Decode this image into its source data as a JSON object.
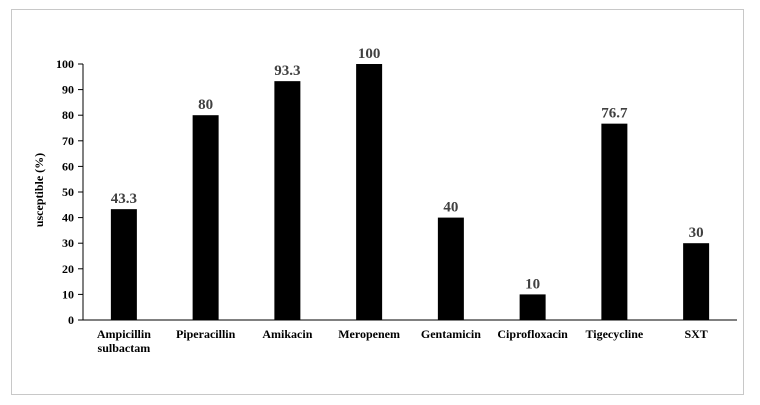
{
  "chart_data": {
    "type": "bar",
    "categories": [
      [
        "Ampicillin",
        "sulbactam"
      ],
      [
        "Piperacillin",
        ""
      ],
      [
        "Amikacin"
      ],
      [
        "Meropenem"
      ],
      [
        "Gentamicin"
      ],
      [
        "Ciprofloxacin"
      ],
      [
        "Tigecycline"
      ],
      [
        "SXT"
      ]
    ],
    "values": [
      43.3,
      80,
      93.3,
      100,
      40,
      10,
      76.7,
      30
    ],
    "data_labels": [
      "43.3",
      "80",
      "93.3",
      "100",
      "40",
      "10",
      "76.7",
      "30"
    ],
    "ylabel": "usceptible (%)",
    "xlabel": "",
    "title": "",
    "ylim": [
      0,
      100
    ],
    "yticks": [
      0,
      10,
      20,
      30,
      40,
      50,
      60,
      70,
      80,
      90,
      100
    ],
    "grid": false,
    "bar_color": "#000000",
    "label_color": "#404040"
  }
}
